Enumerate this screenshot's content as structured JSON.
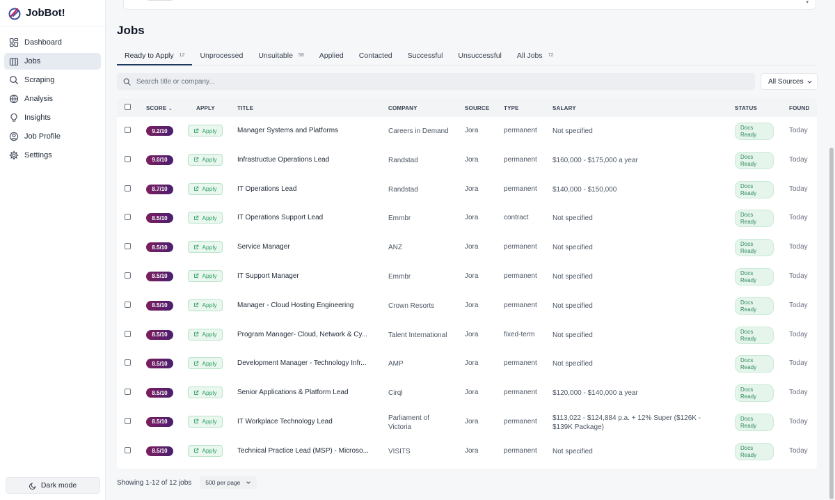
{
  "app": {
    "name": "JobBot!"
  },
  "sidebar": {
    "items": [
      {
        "label": "Dashboard",
        "icon": "dashboard-icon"
      },
      {
        "label": "Jobs",
        "icon": "briefcase-icon",
        "active": true
      },
      {
        "label": "Scraping",
        "icon": "search-icon"
      },
      {
        "label": "Analysis",
        "icon": "globe-icon"
      },
      {
        "label": "Insights",
        "icon": "lightbulb-icon"
      },
      {
        "label": "Job Profile",
        "icon": "user-circle-icon"
      },
      {
        "label": "Settings",
        "icon": "gear-icon"
      }
    ],
    "dark_mode_label": "Dark mode"
  },
  "page": {
    "title": "Jobs"
  },
  "tabs": [
    {
      "label": "Ready to Apply",
      "count": "12",
      "active": true
    },
    {
      "label": "Unprocessed",
      "count": ""
    },
    {
      "label": "Unsuitable",
      "count": "58"
    },
    {
      "label": "Applied",
      "count": ""
    },
    {
      "label": "Contacted",
      "count": ""
    },
    {
      "label": "Successful",
      "count": ""
    },
    {
      "label": "Unsuccessful",
      "count": ""
    },
    {
      "label": "All Jobs",
      "count": "72"
    }
  ],
  "search": {
    "placeholder": "Search title or company..."
  },
  "source_filter": {
    "value": "All Sources"
  },
  "table": {
    "columns": {
      "score": "SCORE",
      "apply": "APPLY",
      "title": "TITLE",
      "company": "COMPANY",
      "source": "SOURCE",
      "type": "TYPE",
      "salary": "SALARY",
      "status": "STATUS",
      "found": "FOUND"
    },
    "apply_label": "Apply",
    "status_label_1": "Docs",
    "status_label_2": "Ready",
    "rows": [
      {
        "score": "9.2/10",
        "title": "Manager Systems and Platforms",
        "company": "Careers in Demand",
        "source": "Jora",
        "type": "permanent",
        "salary": "Not specified",
        "found": "Today"
      },
      {
        "score": "9.0/10",
        "title": "Infrastructue Operations Lead",
        "company": "Randstad",
        "source": "Jora",
        "type": "permanent",
        "salary": "$160,000 - $175,000 a year",
        "found": "Today"
      },
      {
        "score": "8.7/10",
        "title": "IT Operations Lead",
        "company": "Randstad",
        "source": "Jora",
        "type": "permanent",
        "salary": "$140,000 - $150,000",
        "found": "Today"
      },
      {
        "score": "8.5/10",
        "title": "IT Operations Support Lead",
        "company": "Emmbr",
        "source": "Jora",
        "type": "contract",
        "salary": "Not specified",
        "found": "Today"
      },
      {
        "score": "8.5/10",
        "title": "Service Manager",
        "company": "ANZ",
        "source": "Jora",
        "type": "permanent",
        "salary": "Not specified",
        "found": "Today"
      },
      {
        "score": "8.5/10",
        "title": "IT Support Manager",
        "company": "Emmbr",
        "source": "Jora",
        "type": "permanent",
        "salary": "Not specified",
        "found": "Today"
      },
      {
        "score": "8.5/10",
        "title": "Manager - Cloud Hosting Engineering",
        "company": "Crown Resorts",
        "source": "Jora",
        "type": "permanent",
        "salary": "Not specified",
        "found": "Today"
      },
      {
        "score": "8.5/10",
        "title": "Program Manager- Cloud, Network & Cy...",
        "company": "Talent International",
        "source": "Jora",
        "type": "fixed-term",
        "salary": "Not specified",
        "found": "Today"
      },
      {
        "score": "8.5/10",
        "title": "Development Manager - Technology Infr...",
        "company": "AMP",
        "source": "Jora",
        "type": "permanent",
        "salary": "Not specified",
        "found": "Today"
      },
      {
        "score": "8.5/10",
        "title": "Senior Applications & Platform Lead",
        "company": "Cirql",
        "source": "Jora",
        "type": "permanent",
        "salary": "$120,000 - $140,000 a year",
        "found": "Today"
      },
      {
        "score": "8.5/10",
        "title": "IT Workplace Technology Lead",
        "company": "Parliament of Victoria",
        "source": "Jora",
        "type": "permanent",
        "salary": "$113,022 - $124,884 p.a. + 12% Super ($126K - $139K Package)",
        "found": "Today"
      },
      {
        "score": "8.5/10",
        "title": "Technical Practice Lead (MSP) - Microso...",
        "company": "VISITS",
        "source": "Jora",
        "type": "permanent",
        "salary": "Not specified",
        "found": "Today"
      }
    ]
  },
  "footer": {
    "showing": "Showing 1-12 of 12 jobs",
    "per_page": "500 per page"
  }
}
